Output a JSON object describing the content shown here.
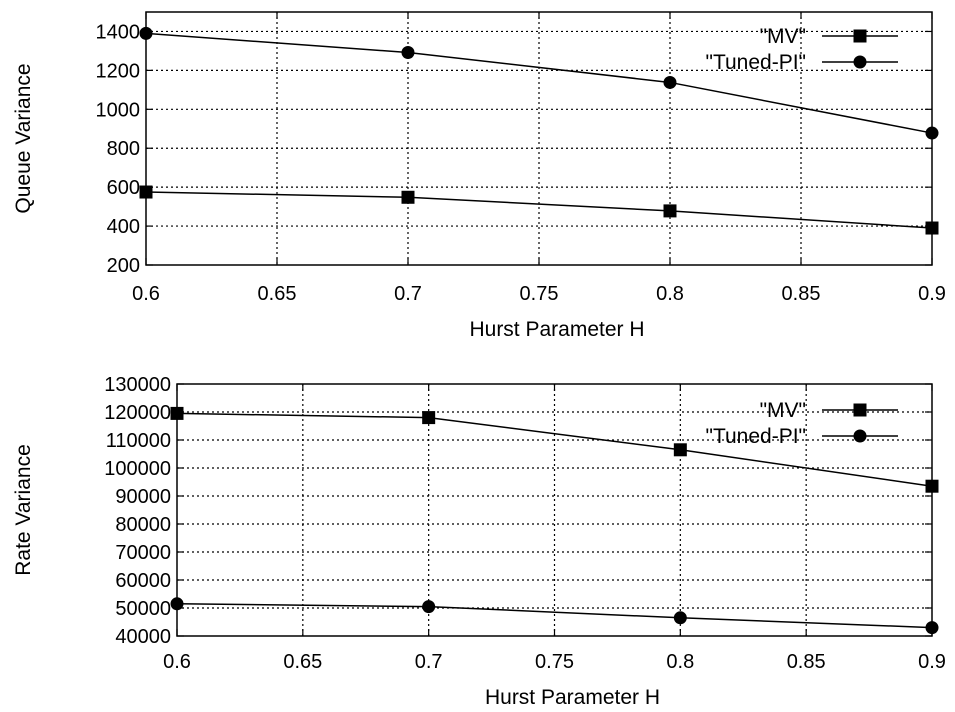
{
  "chart_data": [
    {
      "type": "line",
      "title": "",
      "xlabel": "Hurst Parameter H",
      "ylabel": "Queue Variance",
      "xlim": [
        0.6,
        0.9
      ],
      "ylim": [
        200,
        1500
      ],
      "x_ticks": [
        "0.6",
        "0.65",
        "0.7",
        "0.75",
        "0.8",
        "0.85",
        "0.9"
      ],
      "y_ticks": [
        "200",
        "400",
        "600",
        "800",
        "1000",
        "1200",
        "1400"
      ],
      "grid": true,
      "legend_position": "top-right",
      "x": [
        0.6,
        0.7,
        0.8,
        0.9
      ],
      "series": [
        {
          "name": "\"MV\"",
          "marker": "square",
          "values": [
            575,
            548,
            478,
            390
          ]
        },
        {
          "name": "\"Tuned-PI\"",
          "marker": "circle",
          "values": [
            1390,
            1292,
            1138,
            878
          ]
        }
      ]
    },
    {
      "type": "line",
      "title": "",
      "xlabel": "Hurst Parameter H",
      "ylabel": "Rate Variance",
      "xlim": [
        0.6,
        0.9
      ],
      "ylim": [
        40000,
        130000
      ],
      "x_ticks": [
        "0.6",
        "0.65",
        "0.7",
        "0.75",
        "0.8",
        "0.85",
        "0.9"
      ],
      "y_ticks": [
        "40000",
        "50000",
        "60000",
        "70000",
        "80000",
        "90000",
        "100000",
        "110000",
        "120000",
        "130000"
      ],
      "grid": true,
      "legend_position": "top-right",
      "x": [
        0.6,
        0.7,
        0.8,
        0.9
      ],
      "series": [
        {
          "name": "\"MV\"",
          "marker": "square",
          "values": [
            119500,
            118000,
            106500,
            93500
          ]
        },
        {
          "name": "\"Tuned-PI\"",
          "marker": "circle",
          "values": [
            51500,
            50500,
            46500,
            43000
          ]
        }
      ]
    }
  ]
}
